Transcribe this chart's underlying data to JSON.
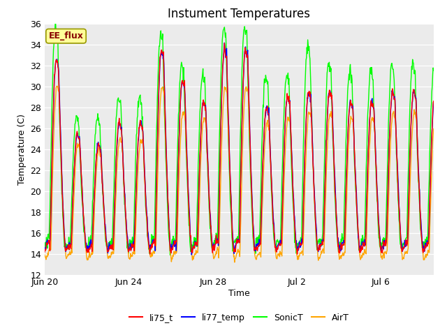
{
  "title": "Instument Temperatures",
  "xlabel": "Time",
  "ylabel": "Temperature (C)",
  "ylim": [
    12,
    36
  ],
  "yticks": [
    12,
    14,
    16,
    18,
    20,
    22,
    24,
    26,
    28,
    30,
    32,
    34,
    36
  ],
  "xtick_labels": [
    "Jun 20",
    "Jun 24",
    "Jun 28",
    "Jul 2",
    "Jul 6"
  ],
  "xtick_days": [
    0,
    4,
    8,
    12,
    16
  ],
  "annotation_text": "EE_flux",
  "annotation_bg": "#FFFF99",
  "annotation_border": "#999900",
  "bg_color": "#EBEBEB",
  "colors": {
    "li75_t": "#FF0000",
    "li77_temp": "#0000FF",
    "SonicT": "#00FF00",
    "AirT": "#FFA500"
  },
  "line_width": 1.0,
  "title_fontsize": 12,
  "label_fontsize": 9,
  "tick_fontsize": 9
}
